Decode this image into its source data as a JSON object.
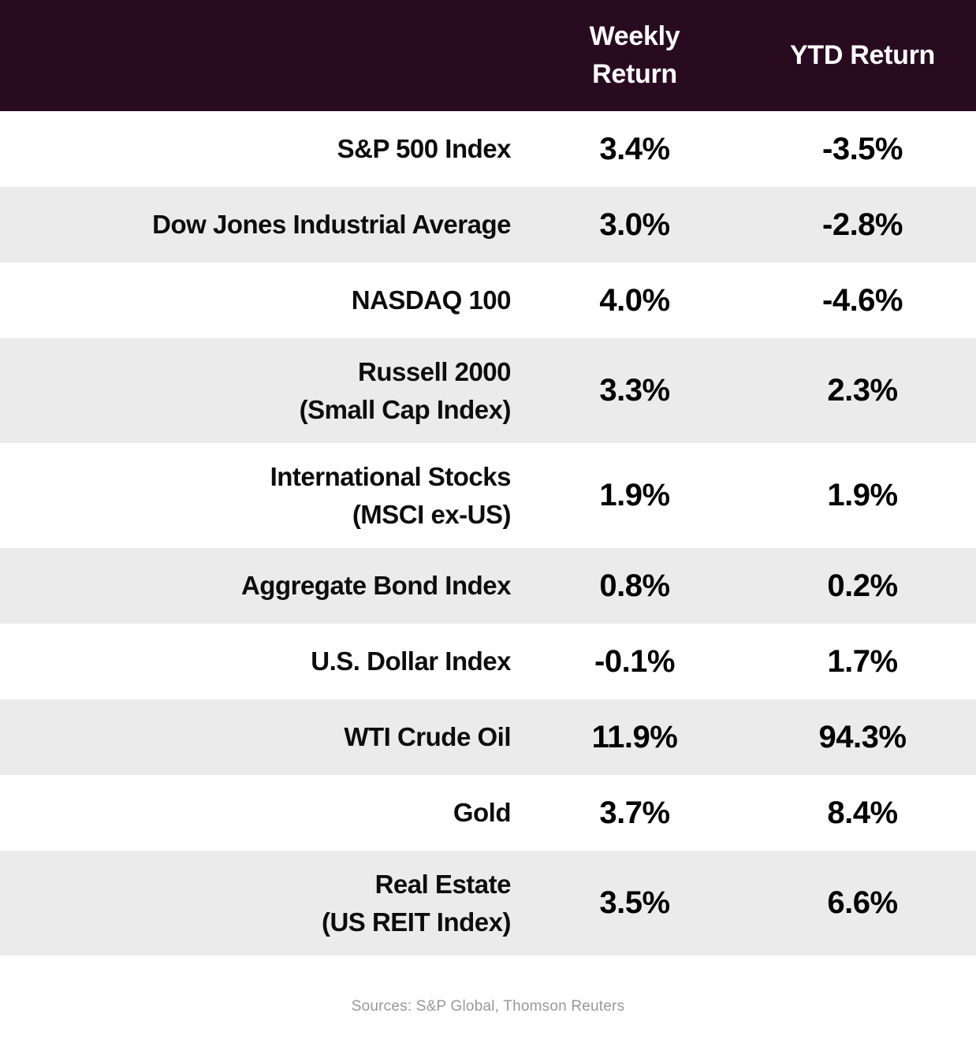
{
  "table": {
    "columns": [
      {
        "label": "Weekly Return"
      },
      {
        "label": "YTD Return"
      }
    ],
    "rows": [
      {
        "label": "S&P 500 Index",
        "sublabel": "",
        "weekly": "3.4%",
        "ytd": "-3.5%"
      },
      {
        "label": "Dow Jones Industrial Average",
        "sublabel": "",
        "weekly": "3.0%",
        "ytd": "-2.8%"
      },
      {
        "label": "NASDAQ 100",
        "sublabel": "",
        "weekly": "4.0%",
        "ytd": "-4.6%"
      },
      {
        "label": "Russell 2000",
        "sublabel": "(Small Cap Index)",
        "weekly": "3.3%",
        "ytd": "2.3%"
      },
      {
        "label": "International Stocks",
        "sublabel": "(MSCI ex-US)",
        "weekly": "1.9%",
        "ytd": "1.9%"
      },
      {
        "label": "Aggregate Bond Index",
        "sublabel": "",
        "weekly": "0.8%",
        "ytd": "0.2%"
      },
      {
        "label": "U.S. Dollar Index",
        "sublabel": "",
        "weekly": "-0.1%",
        "ytd": "1.7%"
      },
      {
        "label": "WTI Crude Oil",
        "sublabel": "",
        "weekly": "11.9%",
        "ytd": "94.3%"
      },
      {
        "label": "Gold",
        "sublabel": "",
        "weekly": "3.7%",
        "ytd": "8.4%"
      },
      {
        "label": "Real Estate",
        "sublabel": "(US REIT Index)",
        "weekly": "3.5%",
        "ytd": "6.6%"
      }
    ]
  },
  "footer": {
    "sources": "Sources: S&P Global, Thomson Reuters"
  },
  "colors": {
    "header_bg": "#290b20",
    "header_text": "#ffffff",
    "row_alt_bg": "#ebebeb",
    "row_bg": "#ffffff",
    "value_text": "#000000",
    "source_text": "#999999"
  },
  "chart_data": {
    "type": "table",
    "title": "",
    "categories": [
      "S&P 500 Index",
      "Dow Jones Industrial Average",
      "NASDAQ 100",
      "Russell 2000 (Small Cap Index)",
      "International Stocks (MSCI ex-US)",
      "Aggregate Bond Index",
      "U.S. Dollar Index",
      "WTI Crude Oil",
      "Gold",
      "Real Estate (US REIT Index)"
    ],
    "series": [
      {
        "name": "Weekly Return",
        "values": [
          3.4,
          3.0,
          4.0,
          3.3,
          1.9,
          0.8,
          -0.1,
          11.9,
          3.7,
          3.5
        ]
      },
      {
        "name": "YTD Return",
        "values": [
          -3.5,
          -2.8,
          -4.6,
          2.3,
          1.9,
          0.2,
          1.7,
          94.3,
          8.4,
          6.6
        ]
      }
    ],
    "source": "Sources: S&P Global, Thomson Reuters"
  }
}
